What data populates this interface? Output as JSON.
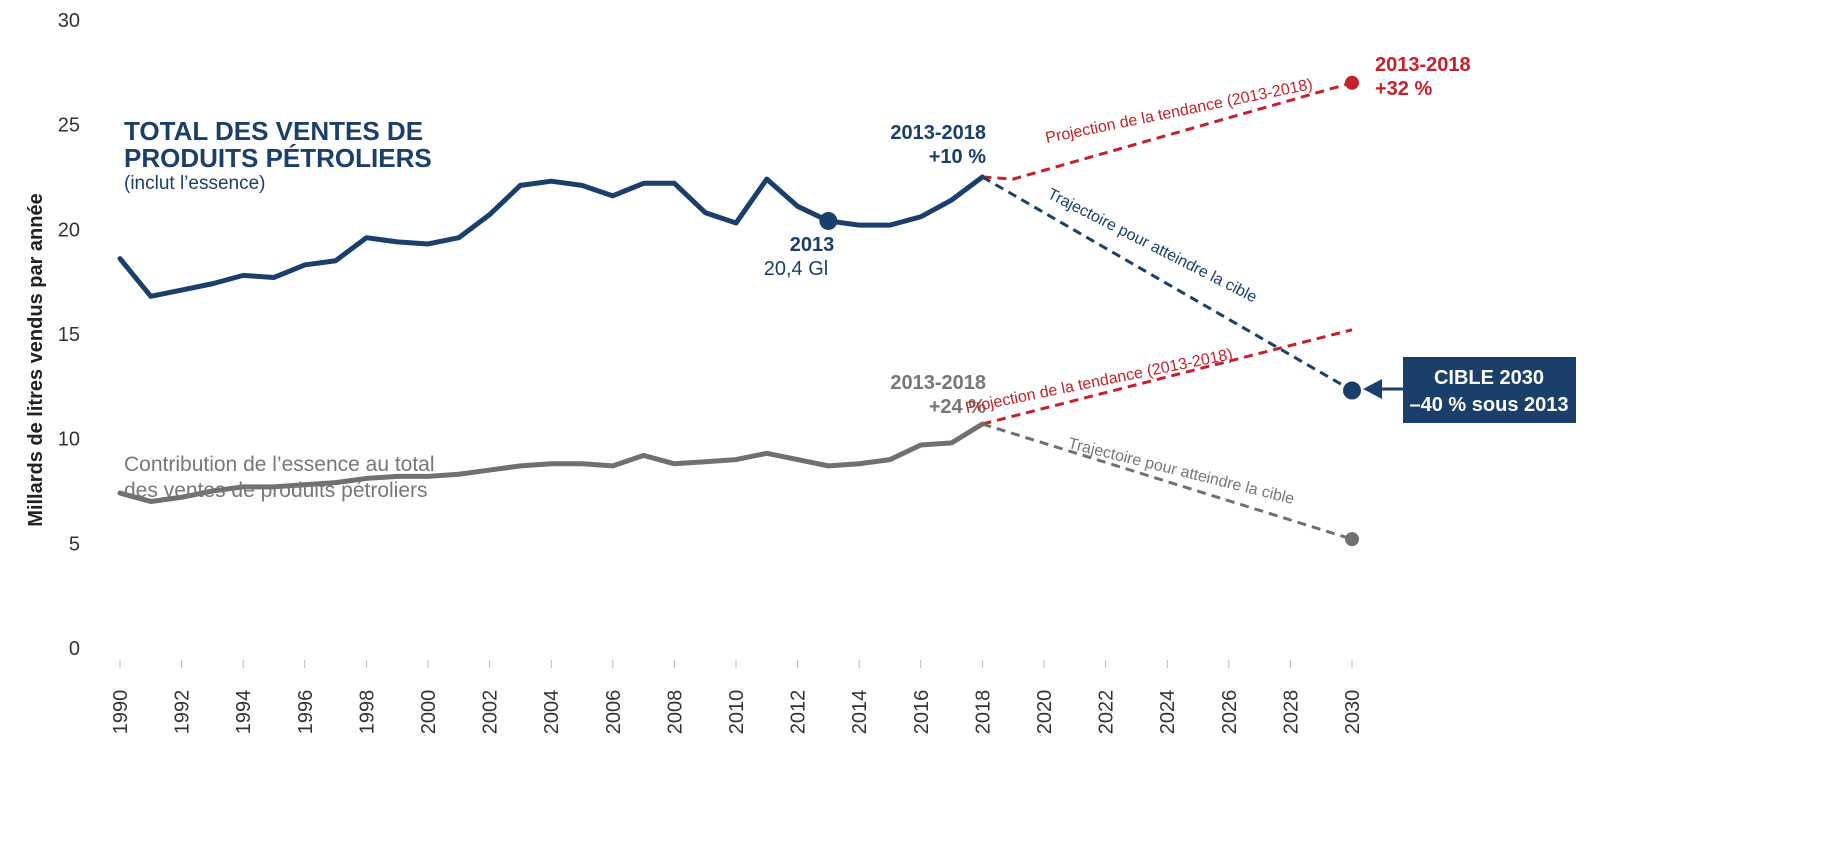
{
  "chart_data": {
    "type": "line",
    "ylabel": "Millards de litres vendus par année",
    "ylim": [
      0,
      30
    ],
    "yticks": [
      0,
      5,
      10,
      15,
      20,
      25,
      30
    ],
    "xticks": [
      1990,
      1992,
      1994,
      1996,
      1998,
      2000,
      2002,
      2004,
      2006,
      2008,
      2010,
      2012,
      2014,
      2016,
      2018,
      2020,
      2022,
      2024,
      2026,
      2028,
      2030
    ],
    "xlim": [
      1990,
      2030
    ],
    "grid": false,
    "colors": {
      "total": "#1b3f6b",
      "gas": "#707070",
      "projection": "#c8202a",
      "target_dot": "#1b3f6b"
    },
    "series": [
      {
        "key": "total",
        "x": [
          1990,
          1991,
          1992,
          1993,
          1994,
          1995,
          1996,
          1997,
          1998,
          1999,
          2000,
          2001,
          2002,
          2003,
          2004,
          2005,
          2006,
          2007,
          2008,
          2009,
          2010,
          2011,
          2012,
          2013,
          2014,
          2015,
          2016,
          2017,
          2018
        ],
        "values": [
          18.6,
          16.8,
          17.1,
          17.4,
          17.8,
          17.7,
          18.3,
          18.5,
          19.6,
          19.4,
          19.3,
          19.6,
          20.7,
          22.1,
          22.3,
          22.1,
          21.6,
          22.2,
          22.2,
          20.8,
          20.3,
          22.4,
          21.1,
          20.4,
          20.2,
          20.2,
          20.6,
          21.4,
          22.5
        ]
      },
      {
        "key": "gas",
        "x": [
          1990,
          1991,
          1992,
          1993,
          1994,
          1995,
          1996,
          1997,
          1998,
          1999,
          2000,
          2001,
          2002,
          2003,
          2004,
          2005,
          2006,
          2007,
          2008,
          2009,
          2010,
          2011,
          2012,
          2013,
          2014,
          2015,
          2016,
          2017,
          2018
        ],
        "values": [
          7.4,
          7.0,
          7.2,
          7.5,
          7.7,
          7.7,
          7.8,
          7.9,
          8.1,
          8.2,
          8.2,
          8.3,
          8.5,
          8.7,
          8.8,
          8.8,
          8.7,
          9.2,
          8.8,
          8.9,
          9.0,
          9.3,
          9.0,
          8.7,
          8.8,
          9.0,
          9.7,
          9.8,
          10.7
        ]
      }
    ],
    "projections": [
      {
        "key": "total-trend",
        "x": [
          2018,
          2019,
          2030
        ],
        "values": [
          22.5,
          22.4,
          27.0
        ],
        "label": "Projection de la tendance (2013-2018)"
      },
      {
        "key": "total-target",
        "x": [
          2018,
          2030
        ],
        "values": [
          22.5,
          12.3
        ],
        "label": "Trajectoire pour atteindre la cible"
      },
      {
        "key": "gas-trend",
        "x": [
          2018,
          2030
        ],
        "values": [
          10.7,
          15.2
        ],
        "label": "Projection de la tendance (2013-2018)"
      },
      {
        "key": "gas-target",
        "x": [
          2018,
          2030
        ],
        "values": [
          10.7,
          5.2
        ],
        "label": "Trajectoire pour atteindre la cible"
      }
    ],
    "markers": [
      {
        "key": "total-2013",
        "x": 2013,
        "y": 20.4
      },
      {
        "key": "total-trend-2030",
        "x": 2030,
        "y": 27.0
      },
      {
        "key": "target-2030",
        "x": 2030,
        "y": 12.3
      },
      {
        "key": "gas-target-2030",
        "x": 2030,
        "y": 5.2
      }
    ],
    "annotations": {
      "total_title_line1": "TOTAL DES VENTES DE",
      "total_title_line2": "PRODUITS PÉTROLIERS",
      "total_subtitle": "(inclut l’essence)",
      "gas_label_line1": "Contribution de l’essence au total",
      "gas_label_line2": "des ventes de produits pétroliers",
      "total_change_period": "2013-2018",
      "total_change_value": "+10 %",
      "gas_change_period": "2013-2018",
      "gas_change_value": "+24 %",
      "trend_end_period": "2013-2018",
      "trend_end_value": "+32 %",
      "base_year": "2013",
      "base_value": "20,4 Gl",
      "target_line1": "CIBLE 2030",
      "target_line2": "–40 % sous 2013"
    }
  }
}
